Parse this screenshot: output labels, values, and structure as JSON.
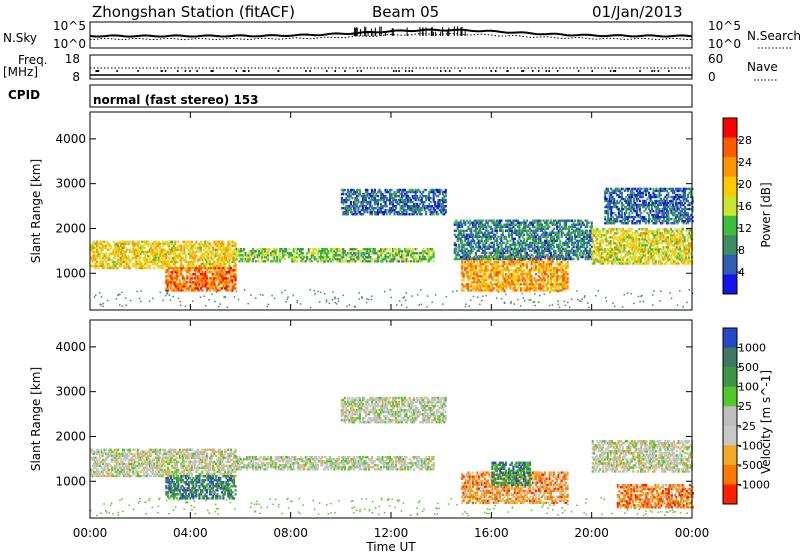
{
  "chart_data": {
    "type": "heatmap",
    "title": "Zhongshan Station (fitACF)",
    "beam": "Beam 05",
    "date": "01/Jan/2013",
    "mode": "normal (fast stereo) 153",
    "xlabel": "Time UT",
    "x_ticks": [
      "00:00",
      "04:00",
      "08:00",
      "12:00",
      "16:00",
      "20:00",
      "00:00"
    ],
    "x_range_hours": [
      0,
      24
    ],
    "header_panels": {
      "noise": {
        "left_label": "N.Sky",
        "left_ticks": [
          "10^5",
          "10^0"
        ],
        "right_label": "N.Search",
        "right_ticks": [
          "10^5",
          "10^0"
        ]
      },
      "freq": {
        "left_label": "Freq.",
        "left_unit": "[MHz]",
        "left_ticks": [
          "18",
          "8"
        ],
        "right_label": "Nave",
        "right_ticks": [
          "60",
          "0"
        ]
      },
      "cpid_label": "CPID"
    },
    "panels": [
      {
        "name": "power",
        "ylabel": "Slant Range [km]",
        "y_ticks": [
          1000,
          2000,
          3000,
          4000
        ],
        "y_range": [
          180,
          4600
        ],
        "colorbar_label": "Power [dB]",
        "colorbar_ticks": [
          "28",
          "24",
          "20",
          "16",
          "12",
          "8",
          "4"
        ],
        "colorbar_colors": [
          "#ff0000",
          "#ff5a00",
          "#ff9600",
          "#ffc800",
          "#c8e632",
          "#3cbe3c",
          "#3c8c64",
          "#2e5fb4",
          "#1414e6"
        ]
      },
      {
        "name": "velocity",
        "ylabel": "Slant Range [km]",
        "y_ticks": [
          1000,
          2000,
          3000,
          4000
        ],
        "y_range": [
          180,
          4600
        ],
        "colorbar_label": "Velocity [m s^-1]",
        "colorbar_ticks": [
          "1000",
          "500",
          "100",
          "25",
          "-25",
          "-100",
          "-500",
          "-1000"
        ],
        "colorbar_colors": [
          "#2846c8",
          "#3c7864",
          "#3c9646",
          "#50c828",
          "#bebebe",
          "#c8c8c8",
          "#f0aa28",
          "#ff7800",
          "#ff1e00"
        ]
      }
    ],
    "scatter_regions_power": [
      {
        "t": [
          0.0,
          5.8
        ],
        "r": [
          1100,
          1700
        ],
        "level": 0.6
      },
      {
        "t": [
          5.8,
          13.7
        ],
        "r": [
          1250,
          1550
        ],
        "level": 0.4
      },
      {
        "t": [
          3.0,
          5.8
        ],
        "r": [
          600,
          1100
        ],
        "level": 0.8
      },
      {
        "t": [
          10.0,
          14.2
        ],
        "r": [
          2300,
          2850
        ],
        "level": 0.2
      },
      {
        "t": [
          14.8,
          19.0
        ],
        "r": [
          600,
          1400
        ],
        "level": 0.7
      },
      {
        "t": [
          14.5,
          20.0
        ],
        "r": [
          1300,
          2200
        ],
        "level": 0.25
      },
      {
        "t": [
          20.0,
          24.0
        ],
        "r": [
          1200,
          2000
        ],
        "level": 0.55
      },
      {
        "t": [
          20.5,
          24.0
        ],
        "r": [
          2100,
          2900
        ],
        "level": 0.2
      }
    ],
    "scatter_regions_velocity": [
      {
        "t": [
          0.0,
          5.8
        ],
        "r": [
          1100,
          1700
        ],
        "level": 0.45
      },
      {
        "t": [
          3.0,
          5.8
        ],
        "r": [
          600,
          1100
        ],
        "level": 0.8
      },
      {
        "t": [
          5.8,
          13.7
        ],
        "r": [
          1250,
          1550
        ],
        "level": 0.47
      },
      {
        "t": [
          10.0,
          14.2
        ],
        "r": [
          2300,
          2850
        ],
        "level": 0.47
      },
      {
        "t": [
          14.8,
          19.0
        ],
        "r": [
          500,
          1200
        ],
        "level": 0.25
      },
      {
        "t": [
          16.0,
          17.5
        ],
        "r": [
          900,
          1400
        ],
        "level": 0.75
      },
      {
        "t": [
          20.0,
          24.0
        ],
        "r": [
          1200,
          1900
        ],
        "level": 0.45
      },
      {
        "t": [
          21.0,
          24.0
        ],
        "r": [
          400,
          900
        ],
        "level": 0.2
      }
    ]
  }
}
